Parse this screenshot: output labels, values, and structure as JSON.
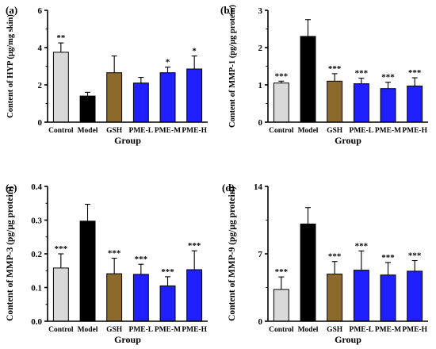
{
  "colors": {
    "Control": "#d9d9d9",
    "Model": "#000000",
    "GSH": "#8b6a2c",
    "PME-L": "#1f1fff",
    "PME-M": "#1f1fff",
    "PME-H": "#1f1fff"
  },
  "chart_data": [
    {
      "type": "bar",
      "panel": "(a)",
      "categories": [
        "Control",
        "Model",
        "GSH",
        "PME-L",
        "PME-M",
        "PME-H"
      ],
      "values": [
        3.75,
        1.4,
        2.65,
        2.1,
        2.65,
        2.85
      ],
      "errors": [
        0.5,
        0.2,
        0.9,
        0.3,
        0.3,
        0.7
      ],
      "significance": [
        "**",
        "",
        "",
        "",
        "*",
        "*"
      ],
      "xlabel": "Group",
      "ylabel": "Content of HYP (μg/mg skin)",
      "ylim": [
        0,
        6
      ],
      "yticks": [
        "0",
        "2",
        "4",
        "6"
      ]
    },
    {
      "type": "bar",
      "panel": "(b)",
      "categories": [
        "Control",
        "Model",
        "GSH",
        "PME-L",
        "PME-M",
        "PME-H"
      ],
      "values": [
        1.05,
        2.3,
        1.1,
        1.03,
        0.9,
        0.97
      ],
      "errors": [
        0.05,
        0.45,
        0.2,
        0.15,
        0.17,
        0.22
      ],
      "significance": [
        "***",
        "",
        "***",
        "***",
        "***",
        "***"
      ],
      "xlabel": "Group",
      "ylabel": "Content of MMP-1 (pg/μg protein)",
      "ylim": [
        0,
        3
      ],
      "yticks": [
        "0",
        "1",
        "2",
        "3"
      ]
    },
    {
      "type": "bar",
      "panel": "(c)",
      "categories": [
        "Control",
        "Model",
        "GSH",
        "PME-L",
        "PME-M",
        "PME-H"
      ],
      "values": [
        0.158,
        0.297,
        0.141,
        0.139,
        0.105,
        0.153
      ],
      "errors": [
        0.042,
        0.05,
        0.046,
        0.03,
        0.027,
        0.056
      ],
      "significance": [
        "***",
        "",
        "***",
        "***",
        "***",
        "***"
      ],
      "xlabel": "Group",
      "ylabel": "Content of MMP-3 (pg/μg protein)",
      "ylim": [
        0,
        0.4
      ],
      "yticks": [
        "0.0",
        "0.1",
        "0.2",
        "0.3",
        "0.4"
      ]
    },
    {
      "type": "bar",
      "panel": "(d)",
      "categories": [
        "Control",
        "Model",
        "GSH",
        "PME-L",
        "PME-M",
        "PME-H"
      ],
      "values": [
        3.3,
        10.1,
        4.9,
        5.3,
        4.8,
        5.2
      ],
      "errors": [
        1.3,
        1.7,
        1.3,
        2.0,
        1.3,
        1.1
      ],
      "significance": [
        "***",
        "",
        "***",
        "***",
        "***",
        "***"
      ],
      "xlabel": "Group",
      "ylabel": "Content of MMP-9 (pg/μg protein)",
      "ylim": [
        0,
        14
      ],
      "yticks": [
        "0",
        "7",
        "14"
      ]
    }
  ]
}
